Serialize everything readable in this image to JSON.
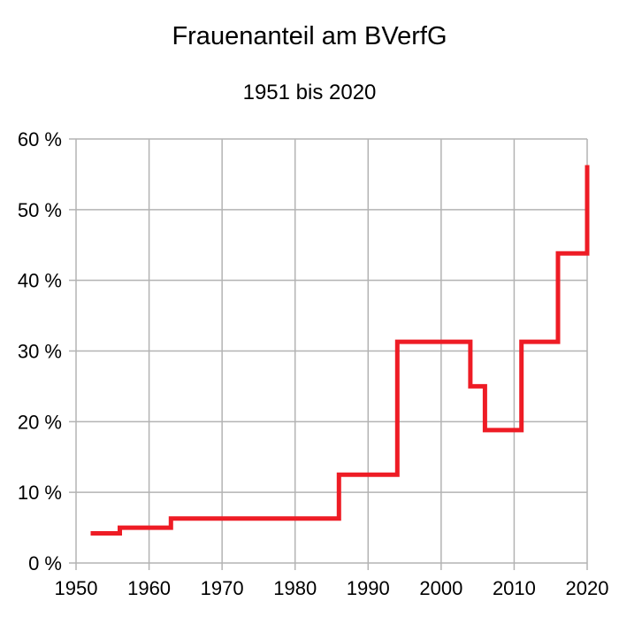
{
  "colors": {
    "series": "#ee1c25",
    "grid": "#b3b3b3",
    "text": "#000000",
    "background": "#ffffff"
  },
  "chart_data": {
    "type": "line",
    "step": true,
    "title": "Frauenanteil am BVerfG",
    "subtitle": "1951 bis 2020",
    "xlabel": "",
    "ylabel": "",
    "xlim": [
      1951,
      2020
    ],
    "ylim": [
      0,
      60
    ],
    "grid": true,
    "legend": "none",
    "x_ticks": [
      1950,
      1960,
      1970,
      1980,
      1990,
      2000,
      2010,
      2020
    ],
    "x_tick_labels": [
      "1950",
      "1960",
      "1970",
      "1980",
      "1990",
      "2000",
      "2010",
      "2020"
    ],
    "y_ticks": [
      0,
      10,
      20,
      30,
      40,
      50,
      60
    ],
    "y_tick_labels": [
      "0 %",
      "10 %",
      "20 %",
      "30 %",
      "40 %",
      "50 %",
      "60 %"
    ],
    "series": [
      {
        "values_unit": "percent",
        "x": [
          1952,
          1956,
          1956,
          1963,
          1963,
          1986,
          1986,
          1994,
          1994,
          2004,
          2004,
          2006,
          2006,
          2011,
          2011,
          2016,
          2016,
          2020,
          2020
        ],
        "y": [
          4.2,
          4.2,
          5.0,
          5.0,
          6.3,
          6.3,
          12.5,
          12.5,
          31.3,
          31.3,
          25.0,
          25.0,
          18.8,
          18.8,
          31.3,
          31.3,
          43.8,
          43.8,
          56.3
        ]
      }
    ]
  }
}
